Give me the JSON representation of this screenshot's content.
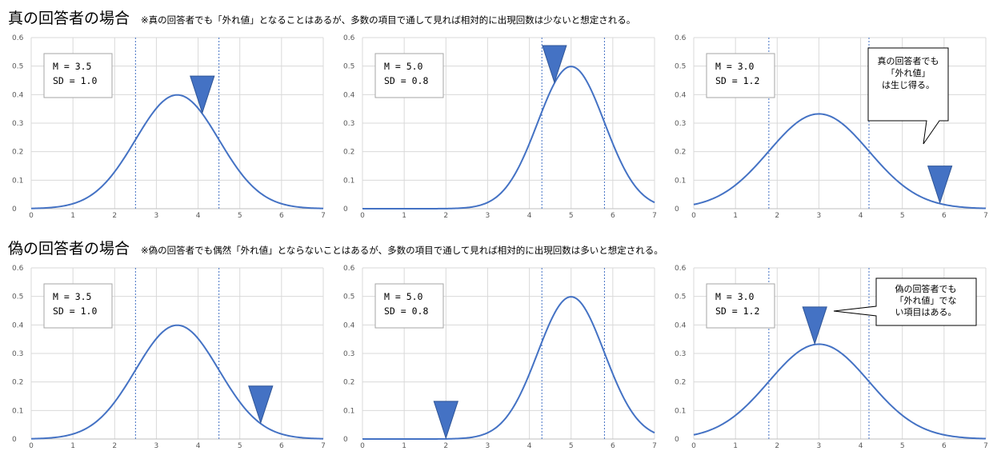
{
  "sections": [
    {
      "title": "真の回答者の場合",
      "note": "※真の回答者でも「外れ値」となることはあるが、多数の項目で通して見れば相対的に出現回数は少ないと想定される。"
    },
    {
      "title": "偽の回答者の場合",
      "note": "※偽の回答者でも偶然「外れ値」とならないことはあるが、多数の項目で通して見れば相対的に出現回数は多いと想定される。"
    }
  ],
  "chart_data": [
    {
      "type": "line",
      "row": 0,
      "col": 0,
      "x_range": [
        0,
        7
      ],
      "ylim": [
        0,
        0.6
      ],
      "x_ticks": [
        "0",
        "1",
        "2",
        "3",
        "4",
        "5",
        "6",
        "7"
      ],
      "y_ticks": [
        "0",
        "0.1",
        "0.2",
        "0.3",
        "0.4",
        "0.5",
        "0.6"
      ],
      "mean": 3.5,
      "sd": 1.0,
      "stats_lines": [
        "M = 3.5",
        "SD = 1.0"
      ],
      "vlines": [
        2.5,
        4.5
      ],
      "marker_x": 4.1,
      "callout": null
    },
    {
      "type": "line",
      "row": 0,
      "col": 1,
      "x_range": [
        0,
        7
      ],
      "ylim": [
        0,
        0.6
      ],
      "x_ticks": [
        "0",
        "1",
        "2",
        "3",
        "4",
        "5",
        "6",
        "7"
      ],
      "y_ticks": [
        "0",
        "0.1",
        "0.2",
        "0.3",
        "0.4",
        "0.5",
        "0.6"
      ],
      "mean": 5.0,
      "sd": 0.8,
      "stats_lines": [
        "M = 5.0",
        "SD = 0.8"
      ],
      "vlines": [
        4.3,
        5.8
      ],
      "marker_x": 4.6,
      "callout": null
    },
    {
      "type": "line",
      "row": 0,
      "col": 2,
      "x_range": [
        0,
        7
      ],
      "ylim": [
        0,
        0.6
      ],
      "x_ticks": [
        "0",
        "1",
        "2",
        "3",
        "4",
        "5",
        "6",
        "7"
      ],
      "y_ticks": [
        "0",
        "0.1",
        "0.2",
        "0.3",
        "0.4",
        "0.5",
        "0.6"
      ],
      "mean": 3.0,
      "sd": 1.2,
      "stats_lines": [
        "M = 3.0",
        "SD = 1.2"
      ],
      "vlines": [
        1.8,
        4.2
      ],
      "marker_x": 5.9,
      "callout": {
        "lines": [
          "真の回答者でも",
          "「外れ値」",
          "は生じ得る。"
        ]
      }
    },
    {
      "type": "line",
      "row": 1,
      "col": 0,
      "x_range": [
        0,
        7
      ],
      "ylim": [
        0,
        0.6
      ],
      "x_ticks": [
        "0",
        "1",
        "2",
        "3",
        "4",
        "5",
        "6",
        "7"
      ],
      "y_ticks": [
        "0",
        "0.1",
        "0.2",
        "0.3",
        "0.4",
        "0.5",
        "0.6"
      ],
      "mean": 3.5,
      "sd": 1.0,
      "stats_lines": [
        "M = 3.5",
        "SD = 1.0"
      ],
      "vlines": [
        2.5,
        4.5
      ],
      "marker_x": 5.5,
      "callout": null
    },
    {
      "type": "line",
      "row": 1,
      "col": 1,
      "x_range": [
        0,
        7
      ],
      "ylim": [
        0,
        0.6
      ],
      "x_ticks": [
        "0",
        "1",
        "2",
        "3",
        "4",
        "5",
        "6",
        "7"
      ],
      "y_ticks": [
        "0",
        "0.1",
        "0.2",
        "0.3",
        "0.4",
        "0.5",
        "0.6"
      ],
      "mean": 5.0,
      "sd": 0.8,
      "stats_lines": [
        "M = 5.0",
        "SD = 0.8"
      ],
      "vlines": [
        4.3,
        5.8
      ],
      "marker_x": 2.0,
      "callout": null
    },
    {
      "type": "line",
      "row": 1,
      "col": 2,
      "x_range": [
        0,
        7
      ],
      "ylim": [
        0,
        0.6
      ],
      "x_ticks": [
        "0",
        "1",
        "2",
        "3",
        "4",
        "5",
        "6",
        "7"
      ],
      "y_ticks": [
        "0",
        "0.1",
        "0.2",
        "0.3",
        "0.4",
        "0.5",
        "0.6"
      ],
      "mean": 3.0,
      "sd": 1.2,
      "stats_lines": [
        "M = 3.0",
        "SD = 1.2"
      ],
      "vlines": [
        1.8,
        4.2
      ],
      "marker_x": 2.9,
      "callout": {
        "lines": [
          "偽の回答者でも",
          "「外れ値」でな",
          "い項目はある。"
        ]
      }
    }
  ],
  "colors": {
    "curve": "#4472c4",
    "marker": "#4472c4",
    "grid": "#d9d9d9"
  }
}
